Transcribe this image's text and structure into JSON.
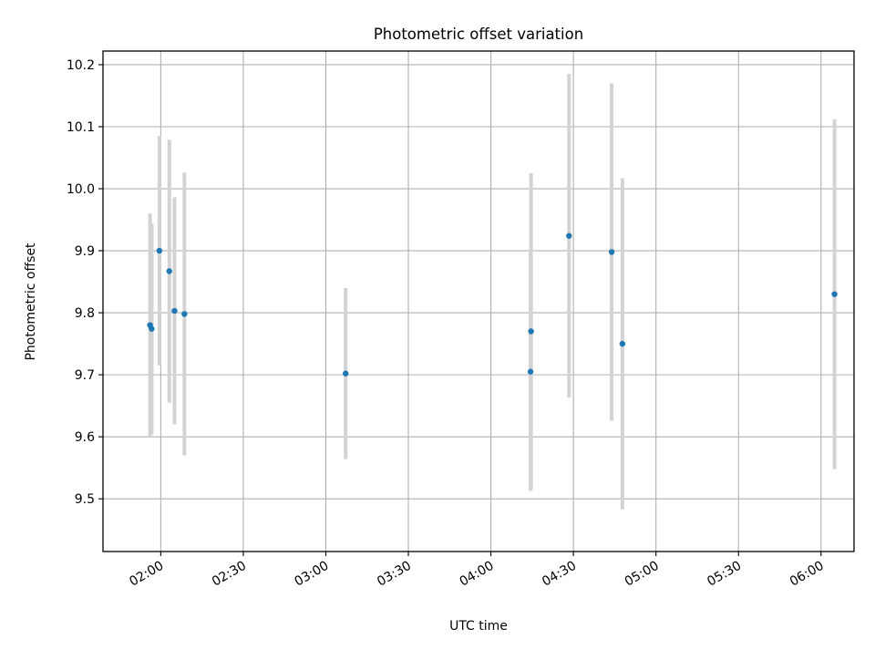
{
  "chart_data": {
    "type": "scatter",
    "title": "Photometric offset variation",
    "xlabel": "UTC time",
    "ylabel": "Photometric offset",
    "xlim": [
      "01:39:00",
      "06:12:00"
    ],
    "ylim": [
      9.415,
      10.222
    ],
    "x_ticks": [
      "02:00",
      "02:30",
      "03:00",
      "03:30",
      "04:00",
      "04:30",
      "05:00",
      "05:30",
      "06:00"
    ],
    "y_ticks": [
      "9.5",
      "9.6",
      "9.7",
      "9.8",
      "9.9",
      "10.0",
      "10.1",
      "10.2"
    ],
    "grid": true,
    "x_tick_rotation_deg": 30,
    "point_color": "#1f77b4",
    "errorbar_color": "#d3d3d3",
    "points": [
      {
        "time": "01:56:06",
        "value": 9.78,
        "yerr": 0.18
      },
      {
        "time": "01:56:42",
        "value": 9.774,
        "yerr": 0.17
      },
      {
        "time": "01:59:30",
        "value": 9.9,
        "yerr": 0.185
      },
      {
        "time": "02:03:06",
        "value": 9.867,
        "yerr": 0.212
      },
      {
        "time": "02:05:00",
        "value": 9.803,
        "yerr": 0.183
      },
      {
        "time": "02:08:36",
        "value": 9.798,
        "yerr": 0.228
      },
      {
        "time": "03:07:12",
        "value": 9.702,
        "yerr": 0.138
      },
      {
        "time": "04:14:36",
        "value": 9.77,
        "yerr": 0.255
      },
      {
        "time": "04:14:24",
        "value": 9.705,
        "yerr": 0.192
      },
      {
        "time": "04:28:24",
        "value": 9.924,
        "yerr": 0.261
      },
      {
        "time": "04:43:54",
        "value": 9.898,
        "yerr": 0.272
      },
      {
        "time": "04:47:48",
        "value": 9.75,
        "yerr": 0.267
      },
      {
        "time": "06:04:54",
        "value": 9.83,
        "yerr": 0.282
      }
    ]
  }
}
